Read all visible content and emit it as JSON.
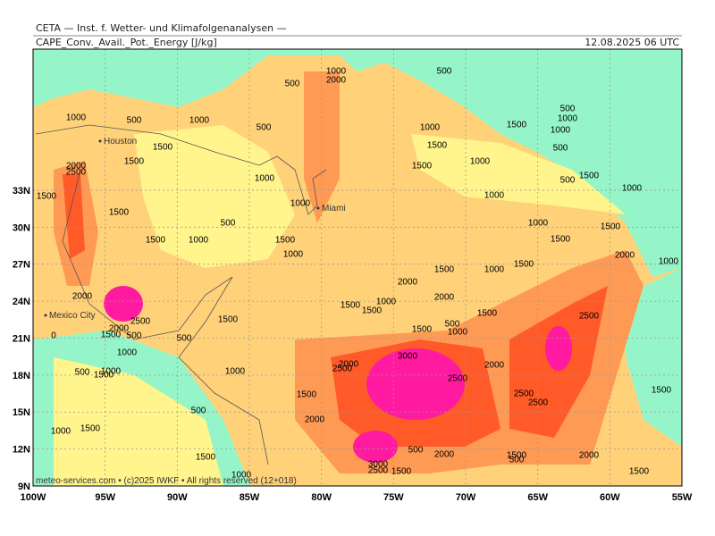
{
  "map": {
    "header": "CETA — Inst. f. Wetter- und Klimafolgenanalysen —",
    "field": "CAPE_Conv._Avail._Pot._Energy [J/kg]",
    "timestamp": "12.08.2025 06 UTC",
    "footer": "meteo-services.com • (c)2025 IWKF • All rights reserved (12+018)",
    "lon_ticks": [
      {
        "value": -100,
        "label": "100W"
      },
      {
        "value": -95,
        "label": "95W"
      },
      {
        "value": -90,
        "label": "90W"
      },
      {
        "value": -85,
        "label": "85W"
      },
      {
        "value": -80,
        "label": "80W"
      },
      {
        "value": -75,
        "label": "75W"
      },
      {
        "value": -70,
        "label": "70W"
      },
      {
        "value": -65,
        "label": "65W"
      },
      {
        "value": -60,
        "label": "60W"
      },
      {
        "value": -55,
        "label": "55W"
      }
    ],
    "lat_ticks": [
      {
        "value": 9,
        "label": "9N"
      },
      {
        "value": 12,
        "label": "12N"
      },
      {
        "value": 15,
        "label": "15N"
      },
      {
        "value": 18,
        "label": "18N"
      },
      {
        "value": 21,
        "label": "21N"
      },
      {
        "value": 24,
        "label": "24N"
      },
      {
        "value": 27,
        "label": "27N"
      },
      {
        "value": 30,
        "label": "30N"
      },
      {
        "value": 33,
        "label": "33N"
      }
    ],
    "cities": [
      "Houston",
      "Miami",
      "Mexico City"
    ],
    "contour_labels": [
      1000,
      2000,
      500,
      500,
      1000,
      500,
      1000,
      500,
      1500,
      1500,
      2000,
      2500,
      1500,
      1500,
      1000,
      1000,
      500,
      1500,
      1000,
      1500,
      1000,
      2000,
      2500,
      2000,
      1500,
      500,
      1000,
      0,
      500,
      1000,
      1500,
      500,
      1500,
      1000,
      500,
      1000,
      1500,
      1500,
      1000,
      3000,
      2500,
      2000,
      2500,
      1500,
      2000,
      500,
      3000,
      2500,
      1500,
      2000,
      1500,
      1500,
      1000,
      2000,
      2000,
      1500,
      1000,
      1500,
      1500,
      500,
      1000,
      1500,
      2000,
      2500,
      2500,
      1500,
      1000,
      1000,
      500,
      1500,
      1000,
      1500,
      2000,
      1000,
      2500,
      1500,
      2000,
      1500,
      1500,
      500,
      1000,
      1500,
      1500,
      1000,
      1500,
      500,
      1000,
      1000,
      500
    ]
  }
}
